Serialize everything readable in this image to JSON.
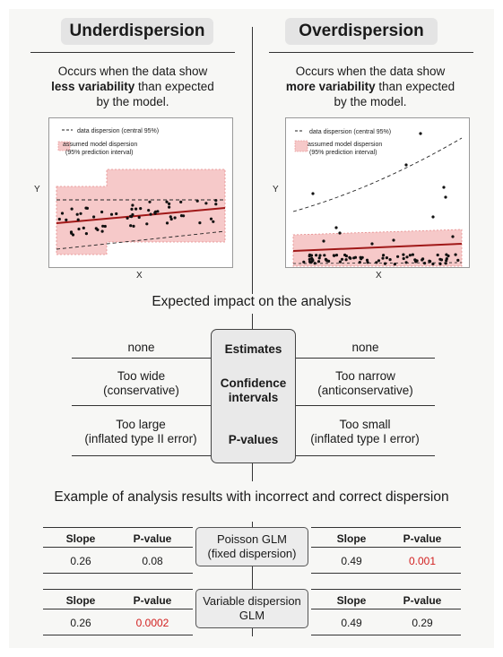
{
  "under": {
    "title": "Underdispersion",
    "desc_pre": "Occurs when the data show",
    "desc_bold": "less variability",
    "desc_mid": " than expected",
    "desc_post": "by the model."
  },
  "over": {
    "title": "Overdispersion",
    "desc_pre": "Occurs when the data show",
    "desc_bold": "more variability",
    "desc_mid": " than expected",
    "desc_post": "by the model."
  },
  "legend": {
    "data_dispersion": "data dispersion (central 95%)",
    "model_line1": "assumed model dispersion",
    "model_line2": "(95% prediction interval)"
  },
  "axes": {
    "x": "X",
    "y": "Y"
  },
  "colors": {
    "red_line": "#a01818",
    "band_fill": "#f6c9c9",
    "band_edge": "#e58b8b",
    "pvalue_red": "#d21f1f"
  },
  "impact": {
    "title": "Expected impact on the analysis",
    "rows": [
      {
        "label": "Estimates",
        "under": "none",
        "over": "none"
      },
      {
        "label": "Confidence intervals",
        "under": "Too wide (conservative)",
        "over": "Too narrow (anticonservative)"
      },
      {
        "label": "P-values",
        "under": "Too large (inflated type II error)",
        "over": "Too small (inflated type I error)"
      }
    ],
    "label_ci_1": "Confidence",
    "label_ci_2": "intervals",
    "under_ci_1": "Too wide",
    "under_ci_2": "(conservative)",
    "over_ci_1": "Too narrow",
    "over_ci_2": "(anticonservative)",
    "under_p_1": "Too large",
    "under_p_2": "(inflated type II error)",
    "over_p_1": "Too small",
    "over_p_2": "(inflated type I error)"
  },
  "example": {
    "title": "Example of analysis results with incorrect and correct dispersion",
    "col_slope": "Slope",
    "col_pvalue": "P-value",
    "models": [
      {
        "line1": "Poisson GLM",
        "line2": "(fixed dispersion)",
        "under": {
          "slope": "0.26",
          "pvalue": "0.08",
          "pvalue_red": false
        },
        "over": {
          "slope": "0.49",
          "pvalue": "0.001",
          "pvalue_red": true
        }
      },
      {
        "line1": "Variable dispersion",
        "line2": "GLM",
        "under": {
          "slope": "0.26",
          "pvalue": "0.0002",
          "pvalue_red": true
        },
        "over": {
          "slope": "0.49",
          "pvalue": "0.29",
          "pvalue_red": false
        }
      }
    ]
  }
}
